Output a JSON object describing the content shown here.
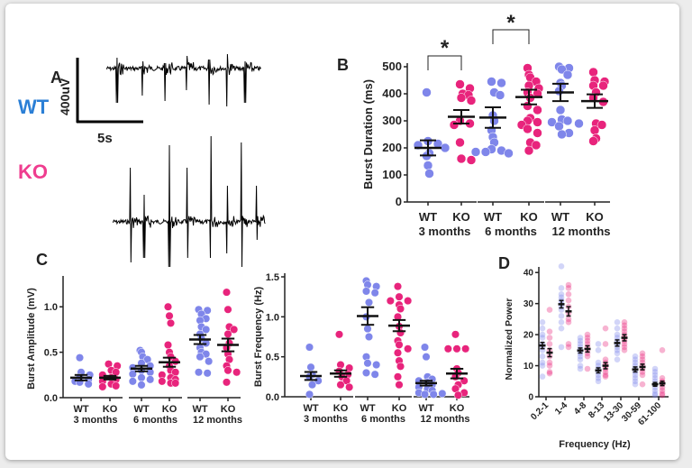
{
  "panel_a": {
    "letter": "A",
    "wt_label": "WT",
    "ko_label": "KO",
    "scale_voltage": "400uV",
    "scale_time": "5s",
    "colors": {
      "wt": "#2b7fd6",
      "ko": "#ef3d8f"
    }
  },
  "colors": {
    "wt": "#7f86ea",
    "ko": "#e8247c",
    "mean": "#111111"
  },
  "chart_data": [
    {
      "id": "B",
      "letter": "B",
      "type": "scatter",
      "ylabel": "Burst Duration (ms)",
      "ylim": [
        0,
        500
      ],
      "yticks": [
        "0",
        "100",
        "200",
        "300",
        "400",
        "500"
      ],
      "groups": [
        {
          "genotype": "WT",
          "age": "3 months",
          "mean": 200,
          "sem": 28,
          "values": [
            405,
            225,
            215,
            210,
            200,
            180,
            170,
            135,
            105
          ]
        },
        {
          "genotype": "KO",
          "age": "3 months",
          "mean": 315,
          "sem": 25,
          "values": [
            435,
            420,
            400,
            395,
            385,
            375,
            300,
            290,
            285,
            220,
            160,
            155
          ]
        },
        {
          "genotype": "WT",
          "age": "6 months",
          "mean": 312,
          "sem": 38,
          "values": [
            445,
            440,
            405,
            395,
            320,
            300,
            265,
            240,
            220,
            195,
            190,
            185,
            180,
            185
          ]
        },
        {
          "genotype": "KO",
          "age": "6 months",
          "mean": 388,
          "sem": 27,
          "values": [
            495,
            470,
            460,
            445,
            430,
            420,
            405,
            400,
            385,
            355,
            340,
            310,
            300,
            295,
            285,
            270,
            255,
            220,
            210,
            190
          ]
        },
        {
          "genotype": "WT",
          "age": "12 months",
          "mean": 405,
          "sem": 32,
          "values": [
            500,
            495,
            490,
            470,
            440,
            430,
            410,
            340,
            305,
            300,
            295,
            290,
            280,
            255,
            250
          ]
        },
        {
          "genotype": "KO",
          "age": "12 months",
          "mean": 373,
          "sem": 25,
          "values": [
            480,
            450,
            445,
            430,
            430,
            405,
            385,
            370,
            290,
            285,
            265,
            235,
            225
          ]
        }
      ],
      "ages": [
        "3 months",
        "6 months",
        "12 months"
      ],
      "significance": [
        {
          "between": "WT vs KO, 3 months",
          "mark": "*"
        },
        {
          "between": "WT vs KO, 6 months",
          "mark": "*"
        }
      ]
    },
    {
      "id": "C1",
      "letter": "C",
      "type": "scatter",
      "ylabel": "Burst Amplitude (mV)",
      "ylim": [
        0,
        1.3
      ],
      "yticks": [
        "0.0",
        "0.5",
        "1.0"
      ],
      "groups": [
        {
          "genotype": "WT",
          "age": "3 months",
          "mean": 0.22,
          "sem": 0.03,
          "values": [
            0.44,
            0.28,
            0.25,
            0.22,
            0.2,
            0.18,
            0.17,
            0.15
          ]
        },
        {
          "genotype": "KO",
          "age": "3 months",
          "mean": 0.22,
          "sem": 0.02,
          "values": [
            0.37,
            0.35,
            0.3,
            0.28,
            0.25,
            0.22,
            0.2,
            0.18,
            0.15,
            0.13,
            0.12
          ]
        },
        {
          "genotype": "WT",
          "age": "6 months",
          "mean": 0.32,
          "sem": 0.03,
          "values": [
            0.52,
            0.5,
            0.45,
            0.42,
            0.38,
            0.35,
            0.33,
            0.3,
            0.28,
            0.26,
            0.22,
            0.2,
            0.18,
            0.14
          ]
        },
        {
          "genotype": "KO",
          "age": "6 months",
          "mean": 0.39,
          "sem": 0.05,
          "values": [
            1.0,
            0.9,
            0.82,
            0.58,
            0.5,
            0.45,
            0.4,
            0.35,
            0.3,
            0.28,
            0.25,
            0.22,
            0.2,
            0.18,
            0.16,
            0.16
          ]
        },
        {
          "genotype": "WT",
          "age": "12 months",
          "mean": 0.64,
          "sem": 0.05,
          "values": [
            0.97,
            0.96,
            0.92,
            0.87,
            0.85,
            0.78,
            0.75,
            0.7,
            0.65,
            0.6,
            0.55,
            0.5,
            0.48,
            0.45,
            0.4,
            0.28,
            0.27
          ]
        },
        {
          "genotype": "KO",
          "age": "12 months",
          "mean": 0.58,
          "sem": 0.07,
          "values": [
            1.16,
            0.97,
            0.78,
            0.75,
            0.7,
            0.6,
            0.55,
            0.48,
            0.42,
            0.35,
            0.3,
            0.28,
            0.17
          ]
        }
      ],
      "ages": [
        "3 months",
        "6 months",
        "12 months"
      ]
    },
    {
      "id": "C2",
      "type": "scatter",
      "ylabel": "Burst Frequency (Hz)",
      "ylim": [
        0,
        1.5
      ],
      "yticks": [
        "0.0",
        "0.5",
        "1.0",
        "1.5"
      ],
      "groups": [
        {
          "genotype": "WT",
          "age": "3 months",
          "mean": 0.26,
          "sem": 0.05,
          "values": [
            0.62,
            0.37,
            0.28,
            0.25,
            0.2,
            0.15,
            0.03
          ]
        },
        {
          "genotype": "KO",
          "age": "3 months",
          "mean": 0.29,
          "sem": 0.04,
          "values": [
            0.78,
            0.4,
            0.36,
            0.32,
            0.28,
            0.25,
            0.2,
            0.15,
            0.12
          ]
        },
        {
          "genotype": "WT",
          "age": "6 months",
          "mean": 1.01,
          "sem": 0.11,
          "values": [
            1.45,
            1.4,
            1.38,
            1.32,
            1.3,
            1.18,
            1.0,
            0.85,
            0.75,
            0.5,
            0.42,
            0.4,
            0.3,
            0.28
          ]
        },
        {
          "genotype": "KO",
          "age": "6 months",
          "mean": 0.89,
          "sem": 0.07,
          "values": [
            1.38,
            1.25,
            1.2,
            1.2,
            1.15,
            1.1,
            1.0,
            0.88,
            0.8,
            0.7,
            0.65,
            0.6,
            0.55,
            0.45,
            0.38,
            0.25,
            0.15
          ]
        },
        {
          "genotype": "WT",
          "age": "12 months",
          "mean": 0.17,
          "sem": 0.03,
          "values": [
            0.62,
            0.5,
            0.25,
            0.22,
            0.2,
            0.18,
            0.15,
            0.12,
            0.1,
            0.08,
            0.05,
            0.04,
            0.03,
            0.03
          ]
        },
        {
          "genotype": "KO",
          "age": "12 months",
          "mean": 0.29,
          "sem": 0.06,
          "values": [
            0.78,
            0.6,
            0.6,
            0.6,
            0.35,
            0.3,
            0.25,
            0.2,
            0.15,
            0.1,
            0.05,
            0.02
          ]
        }
      ],
      "ages": [
        "3 months",
        "6 months",
        "12 months"
      ]
    },
    {
      "id": "D",
      "letter": "D",
      "type": "scatter",
      "ylabel": "Normalized Power",
      "xlabel": "Frequency (Hz)",
      "ylim": [
        0,
        45
      ],
      "yticks": [
        "0",
        "10",
        "20",
        "30",
        "40"
      ],
      "categories": [
        "0.2-1",
        "1-4",
        "4-8",
        "8-13",
        "13-30",
        "30-59",
        "61-100"
      ],
      "series": [
        {
          "name": "WT",
          "means": [
            16.5,
            29.8,
            14.9,
            8.5,
            17.3,
            8.8,
            4.0
          ],
          "sems": [
            1.0,
            1.2,
            0.8,
            0.8,
            1.0,
            0.8,
            0.6
          ],
          "values": [
            [
              24,
              22,
              20,
              19,
              17,
              16,
              15,
              13,
              11,
              10,
              6.5
            ],
            [
              42,
              35,
              33,
              32,
              31,
              30,
              29,
              28,
              26,
              24,
              22,
              16
            ],
            [
              19,
              18,
              17,
              16,
              15,
              14,
              13,
              12,
              10,
              9
            ],
            [
              17,
              15,
              11,
              10,
              9,
              8,
              7,
              6,
              5
            ],
            [
              24,
              22,
              20,
              19,
              18,
              17,
              16,
              15,
              14,
              12
            ],
            [
              13,
              12,
              11,
              10,
              9,
              8,
              7,
              6,
              5,
              4
            ],
            [
              9,
              8,
              7,
              6,
              5,
              4,
              3,
              2,
              1,
              0.5
            ]
          ]
        },
        {
          "name": "KO",
          "means": [
            14.2,
            27.5,
            15.4,
            10.0,
            19.0,
            9.6,
            4.3
          ],
          "sems": [
            1.3,
            1.5,
            1.0,
            1.0,
            1.0,
            0.9,
            0.7
          ],
          "values": [
            [
              28,
              21,
              19,
              17,
              15,
              13,
              11,
              10,
              8,
              7.5
            ],
            [
              36,
              35,
              33,
              31,
              29,
              27,
              25,
              24,
              17,
              16
            ],
            [
              20,
              19,
              18,
              17,
              16,
              15,
              14,
              13,
              9
            ],
            [
              22,
              17,
              12,
              11,
              10,
              9,
              8,
              7,
              6.5
            ],
            [
              24,
              23,
              22,
              21,
              20,
              19,
              18,
              17,
              16,
              15
            ],
            [
              14,
              13,
              12,
              11,
              10,
              9,
              8,
              7,
              4
            ],
            [
              15,
              6,
              5,
              4.5,
              4,
              3,
              2,
              1,
              0.5
            ]
          ]
        }
      ]
    }
  ]
}
